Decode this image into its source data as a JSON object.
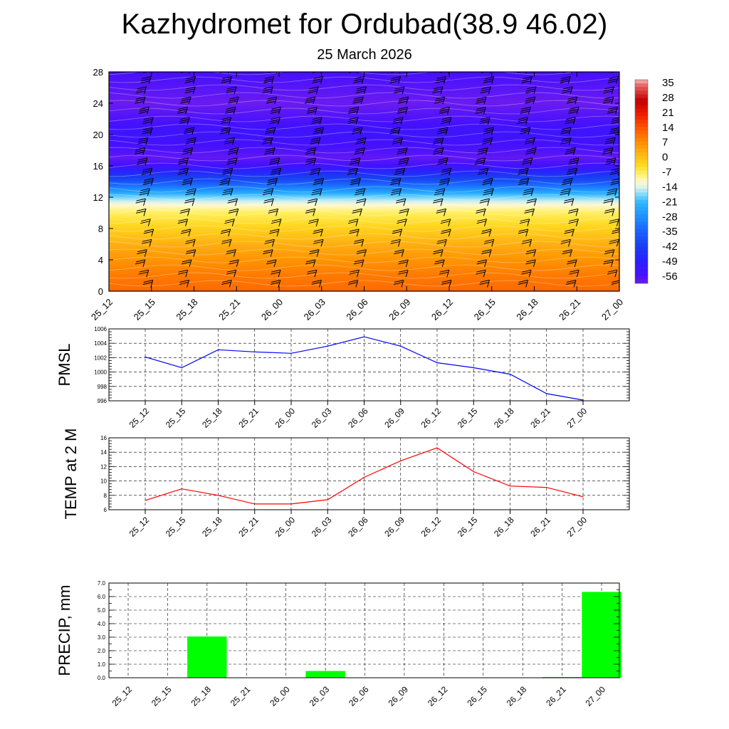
{
  "header": {
    "title": "Kazhydromet for Ordubad(38.9 46.02)",
    "date": "25 March 2026"
  },
  "time_labels": [
    "25_12",
    "25_15",
    "25_18",
    "25_21",
    "26_00",
    "26_03",
    "26_06",
    "26_09",
    "26_12",
    "26_15",
    "26_18",
    "26_21",
    "27_00"
  ],
  "chart_data": [
    {
      "type": "heatmap",
      "name": "temperature-height cross section with wind barbs",
      "x": [
        "25_12",
        "25_15",
        "25_18",
        "25_21",
        "26_00",
        "26_03",
        "26_06",
        "26_09",
        "26_12",
        "26_15",
        "26_18",
        "26_21",
        "27_00"
      ],
      "y_ticks": [
        0,
        4,
        8,
        12,
        16,
        20,
        24,
        28
      ],
      "ylim": [
        0,
        28
      ],
      "colorbar_labels": [
        35,
        28,
        21,
        14,
        7,
        0,
        -7,
        -14,
        -21,
        -28,
        -35,
        -42,
        -49,
        -56
      ],
      "colorbar_range": [
        -60,
        38
      ],
      "profile": {
        "levels": [
          0,
          2,
          4,
          6,
          8,
          10,
          11,
          12,
          13,
          14,
          15,
          16,
          17,
          18,
          20,
          22,
          24,
          26,
          28
        ],
        "temps": [
          12,
          10,
          7,
          3,
          -2,
          -7,
          -11,
          -18,
          -28,
          -38,
          -46,
          -55,
          -59,
          -57,
          -54,
          -57,
          -60,
          -58,
          -56
        ]
      }
    },
    {
      "type": "line",
      "name": "PMSL",
      "ylabel": "PMSL",
      "x": [
        "25_12",
        "25_15",
        "25_18",
        "25_21",
        "26_00",
        "26_03",
        "26_06",
        "26_09",
        "26_12",
        "26_15",
        "26_18",
        "26_21",
        "27_00"
      ],
      "values": [
        1002.1,
        1000.6,
        1003.1,
        1002.8,
        1002.6,
        1003.6,
        1004.9,
        1003.6,
        1001.3,
        1000.6,
        999.7,
        997.0,
        996.1
      ],
      "ylim": [
        996,
        1006
      ],
      "y_ticks": [
        996,
        998,
        1000,
        1002,
        1004,
        1006
      ],
      "color": "#0000ff"
    },
    {
      "type": "line",
      "name": "TEMP at 2 M",
      "ylabel": "TEMP at 2 M",
      "x": [
        "25_12",
        "25_15",
        "25_18",
        "25_21",
        "26_00",
        "26_03",
        "26_06",
        "26_09",
        "26_12",
        "26_15",
        "26_18",
        "26_21",
        "27_00"
      ],
      "values": [
        7.3,
        8.9,
        8.0,
        6.8,
        6.8,
        7.4,
        10.5,
        12.8,
        14.6,
        11.3,
        9.3,
        9.1,
        7.8
      ],
      "ylim": [
        6,
        16
      ],
      "y_ticks": [
        6,
        8,
        10,
        12,
        14,
        16
      ],
      "color": "#ff0000"
    },
    {
      "type": "bar",
      "name": "PRECIP, mm",
      "ylabel": "PRECIP, mm",
      "categories": [
        "25_12",
        "25_15",
        "25_18",
        "25_21",
        "26_00",
        "26_03",
        "26_06",
        "26_09",
        "26_12",
        "26_15",
        "26_18",
        "26_21",
        "27_00"
      ],
      "values": [
        0,
        0,
        3.05,
        0,
        0.02,
        0.5,
        0,
        0,
        0,
        0,
        0,
        0.05,
        6.35
      ],
      "ylim": [
        0,
        7.0
      ],
      "y_ticks": [
        "0.0",
        "1.0",
        "2.0",
        "3.0",
        "4.0",
        "5.0",
        "6.0",
        "7.0"
      ],
      "color": "#00ff00"
    }
  ]
}
